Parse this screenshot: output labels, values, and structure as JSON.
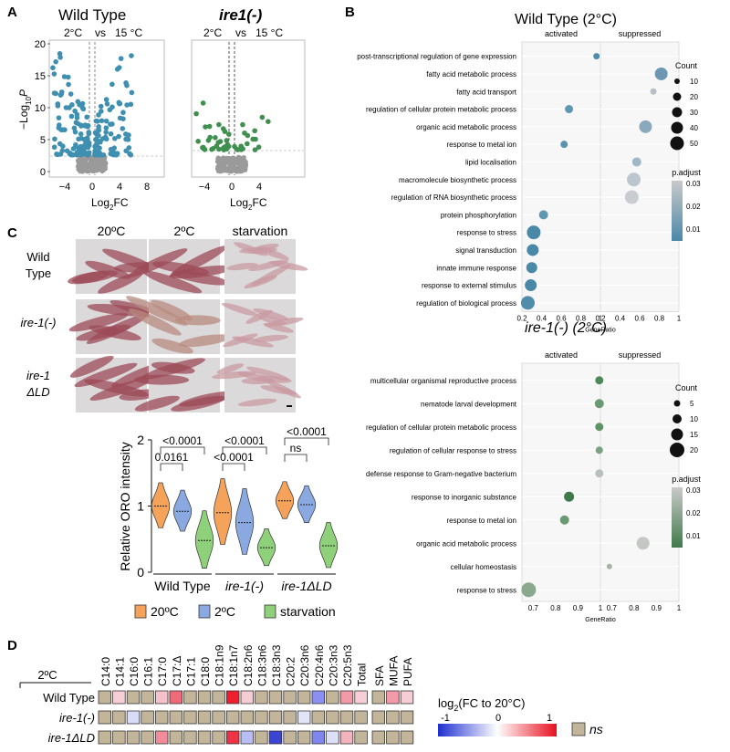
{
  "panels": {
    "A": "A",
    "B": "B",
    "C": "C",
    "D": "D"
  },
  "panelA": {
    "left_title": "Wild Type",
    "right_title": "ire1(-)",
    "left_cond_a": "2°C",
    "left_vs": "vs",
    "left_cond_b": "15 °C",
    "right_cond_a": "2°C",
    "right_vs": "vs",
    "right_cond_b": "15 °C",
    "ylabel_main": "−Log",
    "ylabel_sub": "10",
    "ylabel_tail": "P",
    "xlabel_main": "Log",
    "xlabel_sub": "2",
    "xlabel_tail": "FC",
    "yticks": [
      "0",
      "5",
      "10",
      "15",
      "20"
    ],
    "xticks": [
      "−4",
      "0",
      "4",
      "8"
    ],
    "xticks_right": [
      "−4",
      "0",
      "4"
    ]
  },
  "panelB": {
    "wt_title": "Wild Type (2°C)",
    "ire_title": "ire-1(-) (2°C)",
    "activated": "activated",
    "suppressed": "suppressed",
    "generatio": "GeneRatio",
    "wt_terms": [
      "post-transcriptional regulation of gene expression",
      "fatty acid metabolic process",
      "fatty acid transport",
      "regulation of cellular protein metabolic process",
      "organic acid metabolic process",
      "response to metal ion",
      "lipid localisation",
      "macromolecule biosynthetic process",
      "regulation of RNA biosynthetic process",
      "protein phosphorylation",
      "response to stress",
      "signal transduction",
      "innate immune response",
      "response to external stimulus",
      "regulation of biological process"
    ],
    "ire_terms": [
      "multicellular organismal reproductive process",
      "nematode larval development",
      "regulation of cellular protein metabolic process",
      "regulation of cellular response to stress",
      "defense response to Gram-negative bacterium",
      "response to inorganic substance",
      "response to metal ion",
      "organic acid metabolic process",
      "cellular homeostasis",
      "response to stress"
    ],
    "wt_x_act": [
      "0.2",
      "0.4",
      "0.6",
      "0.8",
      "1"
    ],
    "wt_x_sup": [
      "0.2",
      "0.4",
      "0.6",
      "0.8",
      "1"
    ],
    "ire_x_act": [
      "0.7",
      "0.8",
      "0.9",
      "1"
    ],
    "ire_x_sup": [
      "0.7",
      "0.8",
      "0.9",
      "1"
    ],
    "count_title": "Count",
    "wt_count": [
      "10",
      "20",
      "30",
      "40",
      "50"
    ],
    "ire_count": [
      "5",
      "10",
      "15",
      "20"
    ],
    "padj_title": "p.adjust",
    "wt_padj": [
      "0.03",
      "0.02",
      "0.01"
    ],
    "ire_padj": [
      "0.03",
      "0.02",
      "0.01"
    ]
  },
  "panelC": {
    "cols": [
      "20ºC",
      "2ºC",
      "starvation"
    ],
    "rows": [
      [
        "Wild",
        "Type"
      ],
      [
        "ire-1(-)"
      ],
      [
        "ire-1",
        "ΔLD"
      ]
    ],
    "ylabel": "Relative ORO intensity",
    "yticks": [
      "0",
      "1",
      "2"
    ],
    "groups": [
      "Wild Type",
      "ire-1(-)",
      "ire-1ΔLD"
    ],
    "pvals": [
      "<0.0001",
      "0.0161",
      "<0.0001",
      "<0.0001",
      "<0.0001",
      "ns"
    ],
    "legend": [
      "20ºC",
      "2ºC",
      "starvation"
    ],
    "colors": {
      "c20": "#f5a35b",
      "c2": "#8aa9e0",
      "cstarv": "#8fd07a"
    }
  },
  "panelD": {
    "label": "2ºC",
    "rows": [
      "Wild Type",
      "ire-1(-)",
      "ire-1ΔLD"
    ],
    "columns": [
      "C14:0",
      "C14:1",
      "C16:0",
      "C16:1",
      "C17:0",
      "C17:Δ",
      "C17:1",
      "C18:0",
      "C18:1n9",
      "C18:1n7",
      "C18:2n6",
      "C18:3n6",
      "C18:3n3",
      "C20:2",
      "C20:3n6",
      "C20:4n6",
      "C20:3n3",
      "C20:5n3",
      "Total"
    ],
    "class_columns": [
      "SFA",
      "MUFA",
      "PUFA"
    ],
    "colorbar_title_main": "log",
    "colorbar_title_sub": "2",
    "colorbar_title_tail": "(FC to 20°C)",
    "colorbar_ticks": [
      "-1",
      "0",
      "1"
    ],
    "ns_label": "ns",
    "ns_color": "#c2b59a",
    "cells": [
      [
        "ns",
        "#f6cfd6",
        "ns",
        "ns",
        "#f5c1ca",
        "#f06b7a",
        "ns",
        "ns",
        "ns",
        "#ee2030",
        "#f6cdd4",
        "ns",
        "ns",
        "ns",
        "ns",
        "#8a8ff0",
        "ns",
        "#f29aa7",
        "#f6cfd6"
      ],
      [
        "ns",
        "ns",
        "#d8dcf7",
        "ns",
        "ns",
        "ns",
        "ns",
        "ns",
        "ns",
        "ns",
        "ns",
        "ns",
        "ns",
        "ns",
        "#e2e5f8",
        "ns",
        "ns",
        "ns",
        "ns"
      ],
      [
        "ns",
        "ns",
        "ns",
        "ns",
        "#f28c98",
        "ns",
        "ns",
        "ns",
        "ns",
        "#ee3344",
        "#b9bff3",
        "ns",
        "#3a44d6",
        "ns",
        "ns",
        "#7f86ee",
        "#dce0f8",
        "#f3b3bd",
        "ns"
      ]
    ],
    "class_cells": [
      [
        "ns",
        "#f29aa7",
        "#f6cdd4"
      ],
      [
        "ns",
        "ns",
        "ns"
      ],
      [
        "ns",
        "ns",
        "ns"
      ]
    ]
  }
}
